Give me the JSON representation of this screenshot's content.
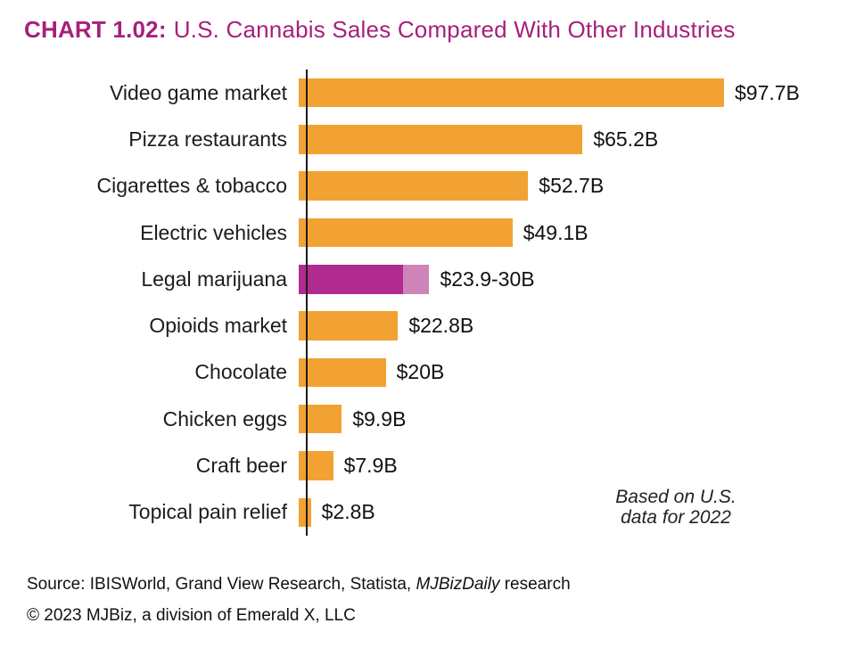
{
  "title": {
    "prefix": "CHART 1.02:",
    "text": "U.S. Cannabis Sales Compared With Other Industries"
  },
  "chart_data": {
    "type": "bar",
    "orientation": "horizontal",
    "unit": "billion USD",
    "title": "U.S. Cannabis Sales Compared With Other Industries",
    "xlim": [
      0,
      100
    ],
    "grid": false,
    "categories": [
      "Video game market",
      "Pizza restaurants",
      "Cigarettes & tobacco",
      "Electric vehicles",
      "Legal marijuana",
      "Opioids market",
      "Chocolate",
      "Chicken eggs",
      "Craft beer",
      "Topical pain relief"
    ],
    "bars": [
      {
        "label": "Video game market",
        "value": 97.7,
        "value_label": "$97.7B"
      },
      {
        "label": "Pizza restaurants",
        "value": 65.2,
        "value_label": "$65.2B"
      },
      {
        "label": "Cigarettes & tobacco",
        "value": 52.7,
        "value_label": "$52.7B"
      },
      {
        "label": "Electric vehicles",
        "value": 49.1,
        "value_label": "$49.1B"
      },
      {
        "label": "Legal marijuana",
        "value": 23.9,
        "value_high": 30,
        "value_label": "$23.9-30B",
        "highlight": true
      },
      {
        "label": "Opioids market",
        "value": 22.8,
        "value_label": "$22.8B"
      },
      {
        "label": "Chocolate",
        "value": 20,
        "value_label": "$20B"
      },
      {
        "label": "Chicken eggs",
        "value": 9.9,
        "value_label": "$9.9B"
      },
      {
        "label": "Craft beer",
        "value": 7.9,
        "value_label": "$7.9B"
      },
      {
        "label": "Topical pain relief",
        "value": 2.8,
        "value_label": "$2.8B"
      }
    ]
  },
  "annotation": {
    "line1": "Based on U.S.",
    "line2": "data for 2022"
  },
  "footer": {
    "source_prefix": "Source: IBISWorld, Grand View Research, Statista, ",
    "source_italic": "MJBizDaily",
    "source_suffix": " research",
    "copyright": "© 2023 MJBiz, a division of Emerald X, LLC"
  },
  "colors": {
    "title": "#A7207B",
    "bar_default": "#F2A233",
    "bar_highlight": "#B02A8F",
    "bar_highlight_range": "#CE84B8",
    "axis": "#1B1B1B"
  }
}
